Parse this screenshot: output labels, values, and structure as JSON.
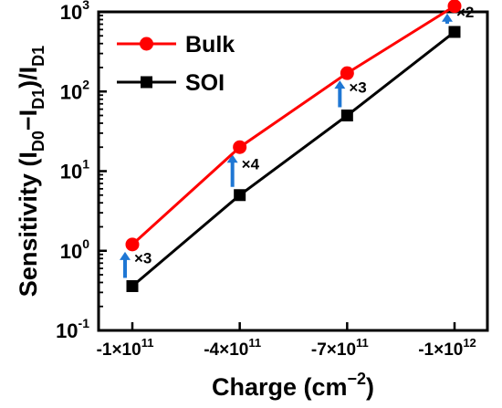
{
  "chart_data": {
    "type": "line",
    "title": "",
    "xlabel": "Charge",
    "xlabel_unit_base": "(cm",
    "xlabel_unit_exp": "−2",
    "xlabel_unit_close": ")",
    "ylabel": "Sensitivity (I",
    "ylabel_parts": [
      {
        "t": "Sensitivity (I",
        "sub": false
      },
      {
        "t": "D0",
        "sub": true
      },
      {
        "t": "−I",
        "sub": false
      },
      {
        "t": "D1",
        "sub": true
      },
      {
        "t": ")/I",
        "sub": false
      },
      {
        "t": "D1",
        "sub": true
      }
    ],
    "categories": [
      "-1×10",
      "-4×10",
      "-7×10",
      "-1×10"
    ],
    "category_exponents": [
      "11",
      "11",
      "11",
      "12"
    ],
    "x_values": [
      -100000000000.0,
      -400000000000.0,
      -700000000000.0,
      -1000000000000.0
    ],
    "y_scale": "log",
    "ylim": [
      0.1,
      1000
    ],
    "y_ticks": [
      {
        "base": "10",
        "exp": "-1",
        "value": 0.1
      },
      {
        "base": "10",
        "exp": "0",
        "value": 1
      },
      {
        "base": "10",
        "exp": "1",
        "value": 10
      },
      {
        "base": "10",
        "exp": "2",
        "value": 100
      },
      {
        "base": "10",
        "exp": "3",
        "value": 1000
      }
    ],
    "series": [
      {
        "name": "Bulk",
        "values": [
          1.2,
          20,
          170,
          1180
        ],
        "color": "#ff0000",
        "marker": "circle"
      },
      {
        "name": "SOI",
        "values": [
          0.36,
          5,
          50,
          560
        ],
        "color": "#000000",
        "marker": "square"
      }
    ],
    "annotations": [
      "×3",
      "×4",
      "×3",
      "×2"
    ],
    "annotation_arrow_color": "#1f77d4",
    "legend_position": "top-left",
    "grid": false
  }
}
